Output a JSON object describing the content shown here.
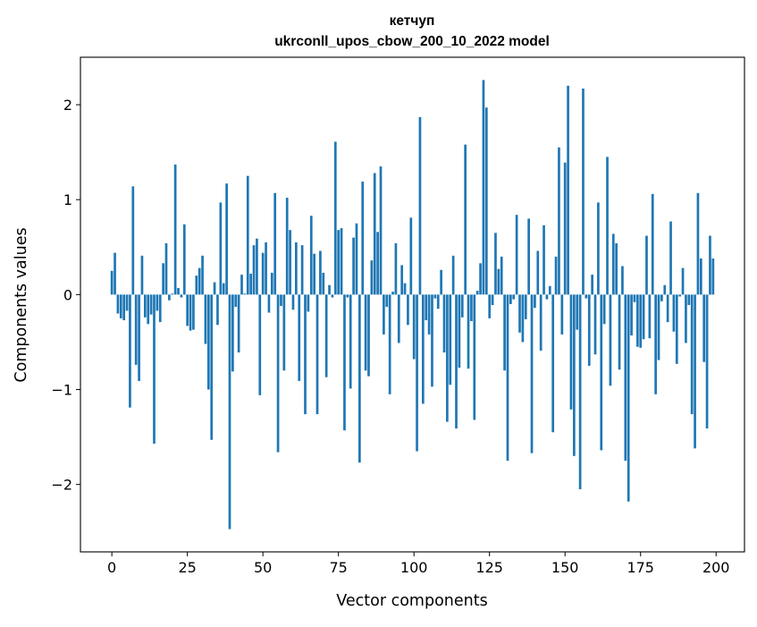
{
  "chart_data": {
    "type": "bar",
    "title": [
      "кетчуп",
      "ukrconll_upos_cbow_200_10_2022 model"
    ],
    "xlabel": "Vector components",
    "ylabel": "Components values",
    "xlim": [
      -10.4,
      209.4
    ],
    "ylim": [
      -2.71,
      2.5
    ],
    "xticks": [
      0,
      25,
      50,
      75,
      100,
      125,
      150,
      175,
      200
    ],
    "xtick_labels": [
      "0",
      "25",
      "50",
      "75",
      "100",
      "125",
      "150",
      "175",
      "200"
    ],
    "yticks": [
      -2,
      -1,
      0,
      1,
      2
    ],
    "ytick_labels": [
      "−2",
      "−1",
      "0",
      "1",
      "2"
    ],
    "grid": false,
    "color": "#1f77b4",
    "values": [
      0.25,
      0.44,
      -0.2,
      -0.25,
      -0.27,
      -0.17,
      -1.19,
      1.14,
      -0.74,
      -0.91,
      0.41,
      -0.24,
      -0.31,
      -0.21,
      -1.57,
      -0.17,
      -0.29,
      0.33,
      0.54,
      -0.06,
      0.01,
      1.37,
      0.07,
      -0.03,
      0.74,
      -0.33,
      -0.38,
      -0.37,
      0.2,
      0.28,
      0.41,
      -0.52,
      -1.0,
      -1.53,
      0.13,
      -0.32,
      0.97,
      0.12,
      1.17,
      -2.47,
      -0.81,
      -0.13,
      -0.61,
      0.21,
      0.01,
      1.25,
      0.22,
      0.52,
      0.59,
      -1.06,
      0.44,
      0.55,
      -0.19,
      0.23,
      1.07,
      -1.66,
      -0.12,
      -0.8,
      1.02,
      0.68,
      -0.16,
      0.55,
      -0.91,
      0.52,
      -1.26,
      -0.18,
      0.83,
      0.43,
      -1.26,
      0.46,
      0.23,
      -0.87,
      0.1,
      -0.03,
      1.61,
      0.68,
      0.7,
      -1.43,
      -0.03,
      -0.99,
      0.6,
      0.75,
      -1.77,
      1.19,
      -0.8,
      -0.86,
      0.36,
      1.28,
      0.66,
      1.35,
      -0.42,
      -0.13,
      -1.05,
      0.03,
      0.54,
      -0.51,
      0.31,
      0.12,
      -0.32,
      0.81,
      -0.68,
      -1.65,
      1.87,
      -1.15,
      -0.27,
      -0.42,
      -0.97,
      -0.04,
      -0.15,
      0.26,
      -0.61,
      -1.34,
      -0.95,
      0.41,
      -1.41,
      -0.77,
      -0.24,
      1.58,
      -0.78,
      -0.28,
      -1.32,
      0.04,
      0.33,
      2.26,
      1.97,
      -0.25,
      -0.11,
      0.65,
      0.27,
      0.4,
      -0.8,
      -1.75,
      -0.1,
      -0.05,
      0.84,
      -0.4,
      -0.5,
      -0.26,
      0.8,
      -1.67,
      -0.14,
      0.46,
      -0.59,
      0.73,
      -0.05,
      0.09,
      -1.45,
      0.4,
      1.55,
      -0.42,
      1.39,
      2.2,
      -1.21,
      -1.7,
      -0.37,
      -2.05,
      2.17,
      -0.04,
      -0.75,
      0.21,
      -0.63,
      0.97,
      -1.64,
      -0.31,
      1.45,
      -0.96,
      0.64,
      0.54,
      -0.79,
      0.3,
      -1.75,
      -2.18,
      -0.43,
      -0.08,
      -0.55,
      -0.56,
      -0.47,
      0.62,
      -0.46,
      1.06,
      -1.05,
      -0.69,
      -0.07,
      0.1,
      -0.29,
      0.77,
      -0.39,
      -0.73,
      -0.02,
      0.28,
      -0.51,
      -0.11,
      -1.26,
      -1.62,
      1.07,
      0.38,
      -0.71,
      -1.41,
      0.62,
      0.38
    ]
  }
}
